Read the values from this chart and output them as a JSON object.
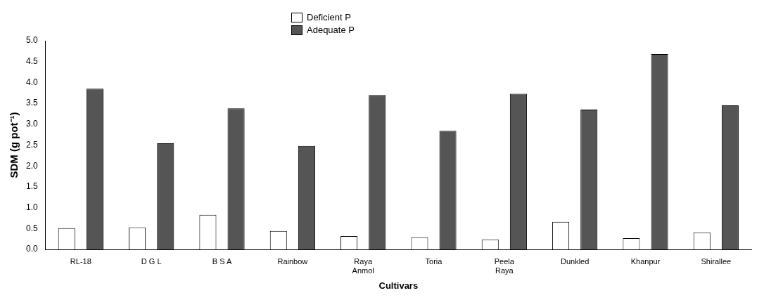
{
  "chart_data": {
    "type": "bar",
    "xlabel": "Cultivars",
    "ylabel": "SDM (g pot⁻¹)",
    "categories": [
      "RL-18",
      "D G L",
      "B S A",
      "Rainbow",
      "Raya Anmol",
      "Toria",
      "Peela Raya",
      "Dunkled",
      "Khanpur",
      "Shirallee"
    ],
    "series": [
      {
        "name": "Deficient P",
        "color": "#ffffff",
        "values": [
          0.51,
          0.53,
          0.83,
          0.44,
          0.32,
          0.29,
          0.24,
          0.66,
          0.27,
          0.41
        ]
      },
      {
        "name": "Adequate P",
        "color": "#555555",
        "values": [
          3.85,
          2.54,
          3.38,
          2.48,
          3.7,
          2.84,
          3.73,
          3.35,
          4.68,
          3.45
        ]
      }
    ],
    "ylim": [
      0,
      5
    ],
    "yticks": [
      {
        "value": 0,
        "label": "0.0"
      },
      {
        "value": 0.5,
        "label": "0.5"
      },
      {
        "value": 1,
        "label": "1.0"
      },
      {
        "value": 1.5,
        "label": "1.5"
      },
      {
        "value": 2,
        "label": "2.0"
      },
      {
        "value": 2.5,
        "label": "2.5"
      },
      {
        "value": 3,
        "label": "3.0"
      },
      {
        "value": 3.5,
        "label": "3.5"
      },
      {
        "value": 4,
        "label": "4.0"
      },
      {
        "value": 4.5,
        "label": "4.5"
      },
      {
        "value": 5,
        "label": "5.0"
      }
    ],
    "grid": false,
    "legend": "top"
  }
}
